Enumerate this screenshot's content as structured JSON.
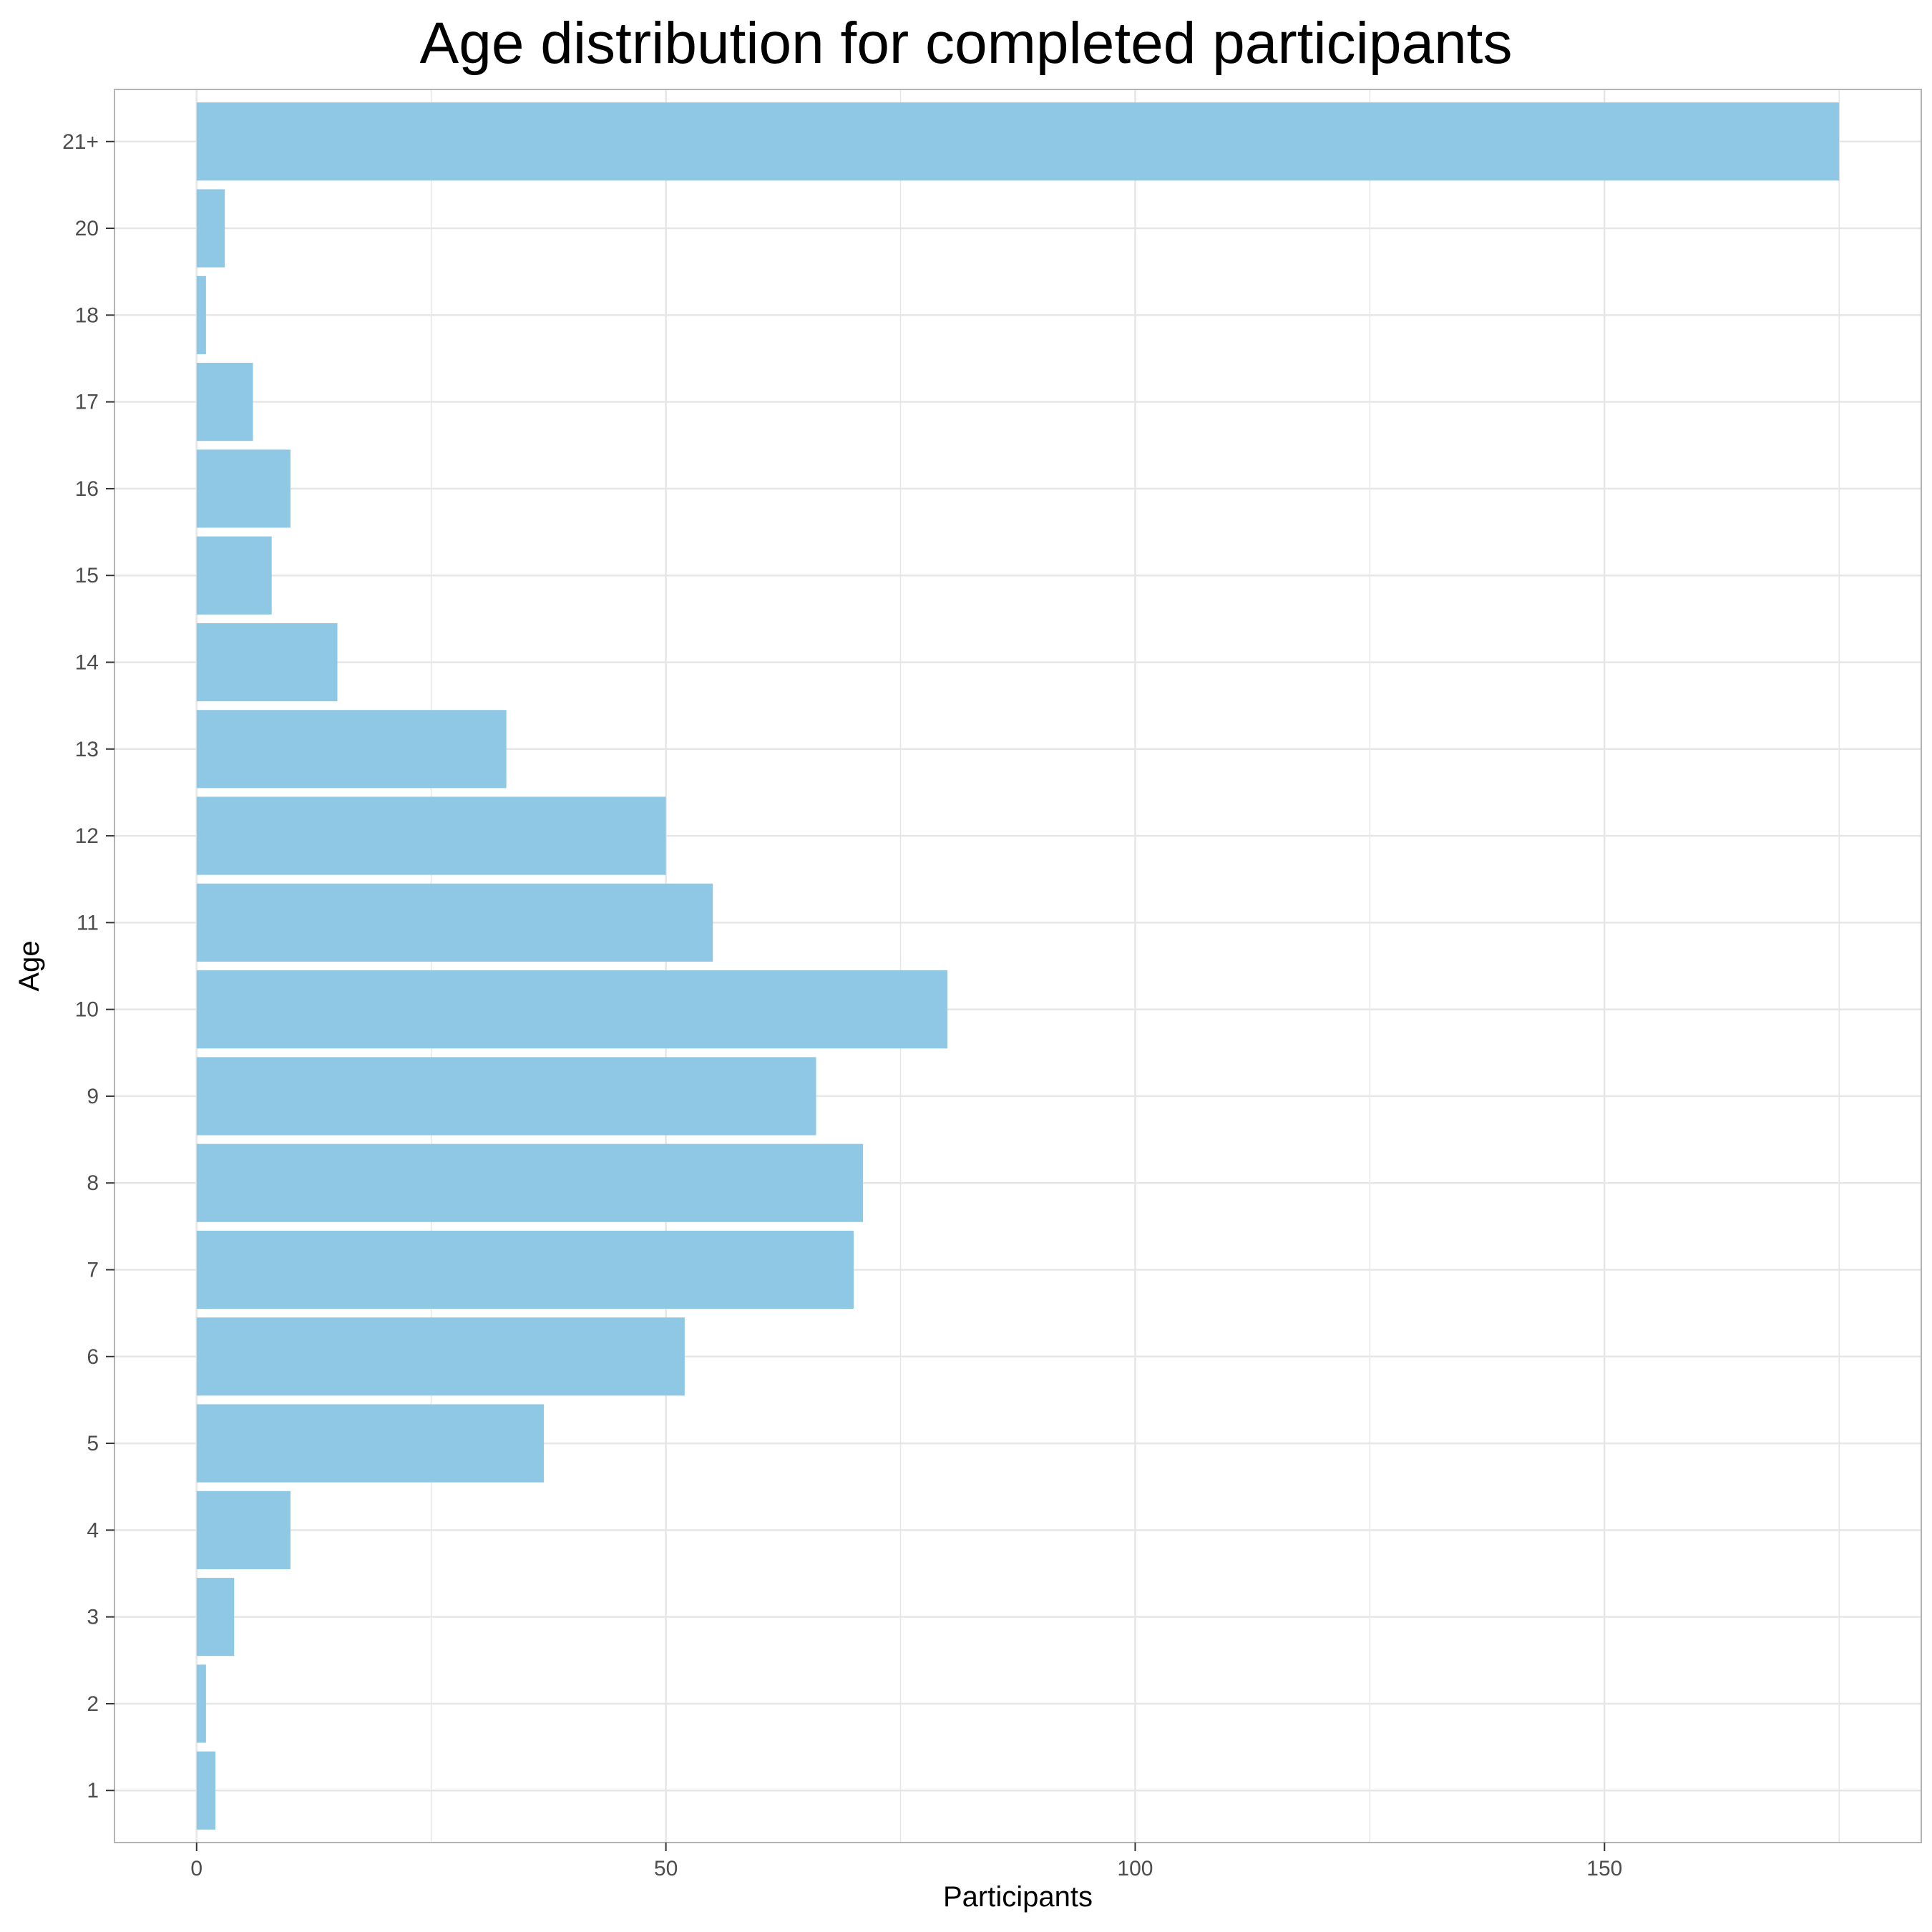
{
  "chart_data": {
    "type": "bar",
    "orientation": "horizontal",
    "title": "Age distribution for completed participants",
    "xlabel": "Participants",
    "ylabel": "Age",
    "categories": [
      "1",
      "2",
      "3",
      "4",
      "5",
      "6",
      "7",
      "8",
      "9",
      "10",
      "11",
      "12",
      "13",
      "14",
      "15",
      "16",
      "17",
      "18",
      "20",
      "21+"
    ],
    "values": [
      2,
      1,
      4,
      10,
      37,
      52,
      70,
      71,
      66,
      80,
      55,
      50,
      33,
      15,
      8,
      10,
      6,
      1,
      3,
      175
    ],
    "xlim": [
      -8.75,
      183.75
    ],
    "xticks": [
      0,
      50,
      100,
      150
    ],
    "grid": true,
    "bar_color": "#8FC8E4",
    "panel_border_color": "#B3B3B3",
    "grid_color": "#E6E6E6"
  }
}
